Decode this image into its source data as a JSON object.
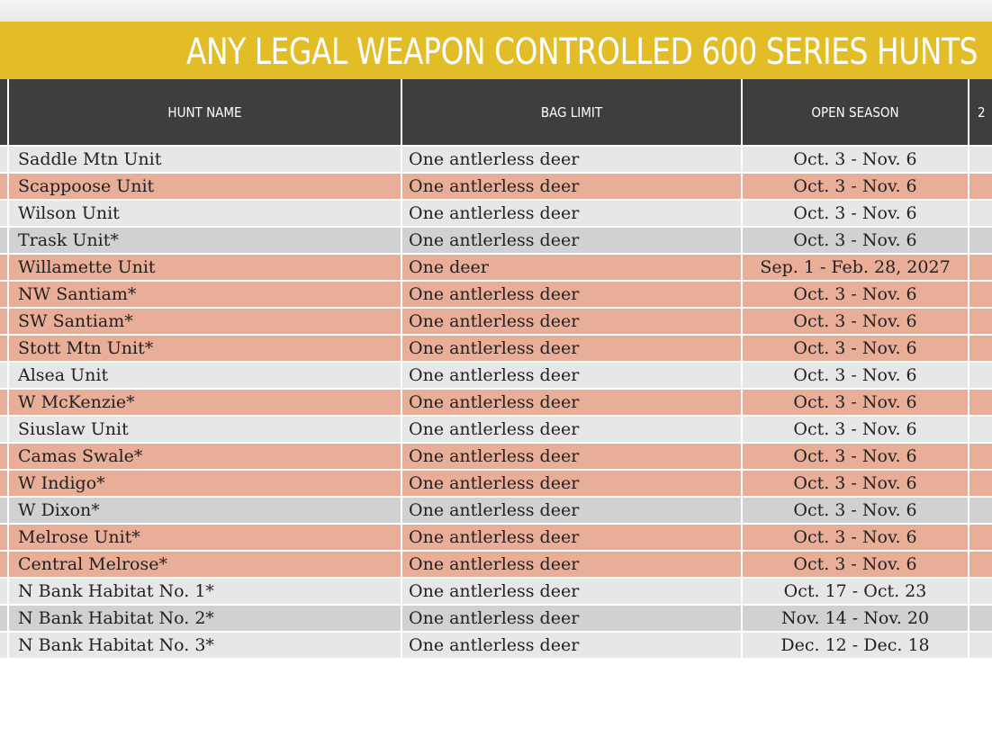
{
  "title": "ANY LEGAL WEAPON CONTROLLED 600 SERIES HUNTS",
  "columns": {
    "hunt_name": "HUNT NAME",
    "bag_limit": "BAG LIMIT",
    "open_season": "OPEN SEASON",
    "extra": "2"
  },
  "colors": {
    "title_bar": "#e2bd27",
    "header_bar": "#3e3e3e",
    "row_light": "#e6e7e9",
    "row_salmon": "#e8ae97",
    "row_grey": "#d0d1d3"
  },
  "rows": [
    {
      "hunt_name": "Saddle Mtn Unit",
      "bag_limit": "One antlerless deer",
      "open_season": "Oct. 3 - Nov. 6",
      "shade": "light"
    },
    {
      "hunt_name": "Scappoose Unit",
      "bag_limit": "One antlerless deer",
      "open_season": "Oct. 3 - Nov. 6",
      "shade": "salmon"
    },
    {
      "hunt_name": "Wilson Unit",
      "bag_limit": "One antlerless deer",
      "open_season": "Oct. 3 - Nov. 6",
      "shade": "light"
    },
    {
      "hunt_name": "Trask Unit*",
      "bag_limit": "One antlerless deer",
      "open_season": "Oct. 3 - Nov. 6",
      "shade": "grey"
    },
    {
      "hunt_name": "Willamette Unit",
      "bag_limit": "One deer",
      "open_season": "Sep. 1 - Feb. 28, 2027",
      "shade": "salmon"
    },
    {
      "hunt_name": "NW Santiam*",
      "bag_limit": "One antlerless deer",
      "open_season": "Oct. 3 - Nov. 6",
      "shade": "salmon"
    },
    {
      "hunt_name": "SW Santiam*",
      "bag_limit": "One antlerless deer",
      "open_season": "Oct. 3 - Nov. 6",
      "shade": "salmon"
    },
    {
      "hunt_name": "Stott Mtn Unit*",
      "bag_limit": "One antlerless deer",
      "open_season": "Oct. 3 - Nov. 6",
      "shade": "salmon"
    },
    {
      "hunt_name": "Alsea Unit",
      "bag_limit": "One antlerless deer",
      "open_season": "Oct. 3 - Nov. 6",
      "shade": "light"
    },
    {
      "hunt_name": "W McKenzie*",
      "bag_limit": "One antlerless deer",
      "open_season": "Oct. 3 - Nov. 6",
      "shade": "salmon"
    },
    {
      "hunt_name": "Siuslaw Unit",
      "bag_limit": "One antlerless deer",
      "open_season": "Oct. 3 - Nov. 6",
      "shade": "light"
    },
    {
      "hunt_name": "Camas Swale*",
      "bag_limit": "One antlerless deer",
      "open_season": "Oct. 3 - Nov. 6",
      "shade": "salmon"
    },
    {
      "hunt_name": "W Indigo*",
      "bag_limit": "One antlerless deer",
      "open_season": "Oct. 3 - Nov. 6",
      "shade": "salmon"
    },
    {
      "hunt_name": "W Dixon*",
      "bag_limit": "One antlerless deer",
      "open_season": "Oct. 3 - Nov. 6",
      "shade": "grey"
    },
    {
      "hunt_name": "Melrose Unit*",
      "bag_limit": "One antlerless deer",
      "open_season": "Oct. 3 - Nov. 6",
      "shade": "salmon"
    },
    {
      "hunt_name": "Central Melrose*",
      "bag_limit": "One antlerless deer",
      "open_season": "Oct. 3 - Nov. 6",
      "shade": "salmon"
    },
    {
      "hunt_name": "N Bank Habitat No. 1*",
      "bag_limit": "One antlerless deer",
      "open_season": "Oct. 17 - Oct. 23",
      "shade": "light"
    },
    {
      "hunt_name": "N Bank Habitat No. 2*",
      "bag_limit": "One antlerless deer",
      "open_season": "Nov. 14 - Nov. 20",
      "shade": "grey"
    },
    {
      "hunt_name": "N Bank Habitat No. 3*",
      "bag_limit": "One antlerless deer",
      "open_season": "Dec. 12 - Dec. 18",
      "shade": "light"
    }
  ]
}
